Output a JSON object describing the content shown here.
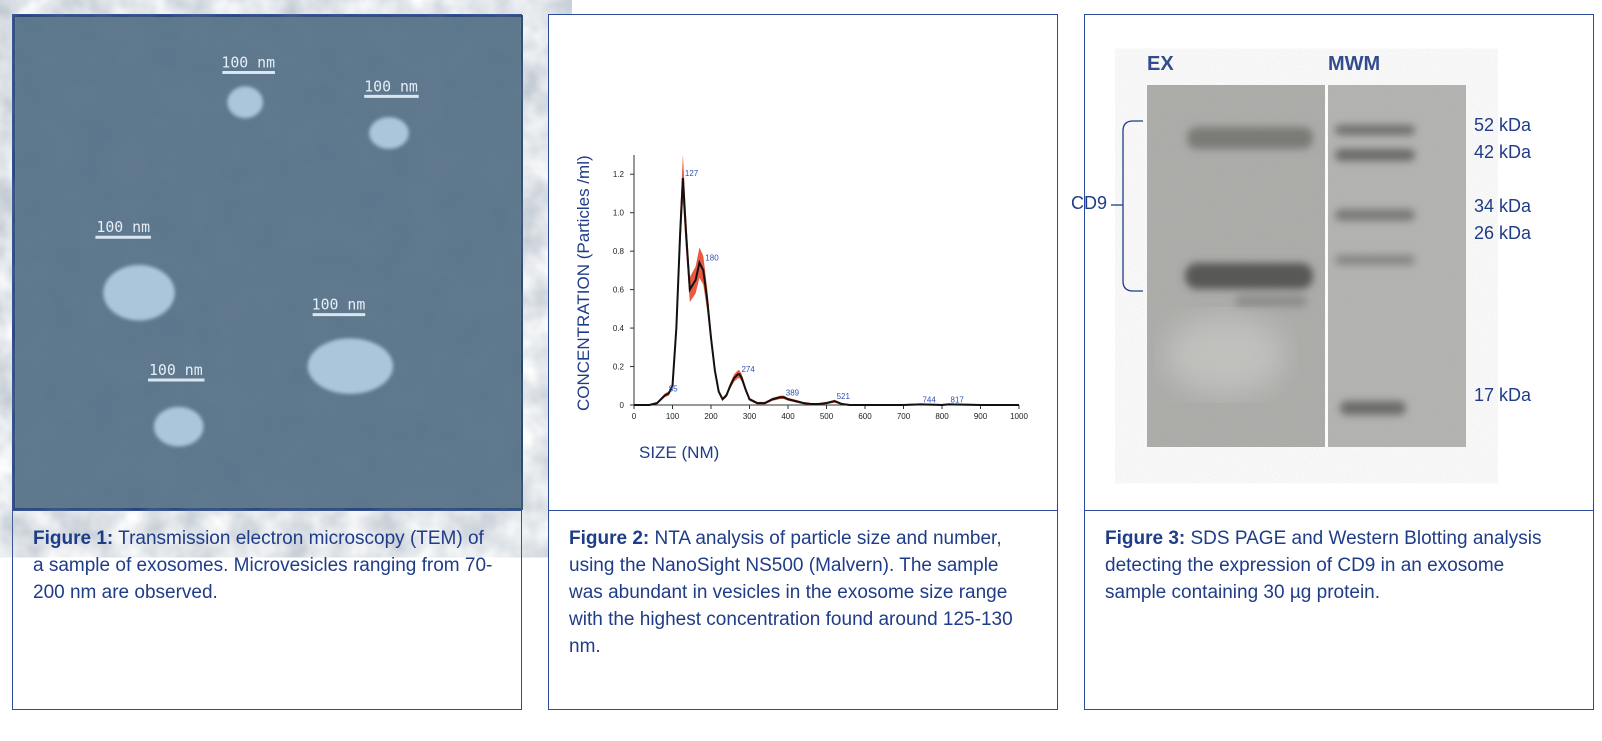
{
  "figure1": {
    "scale_bars": [
      "100 nm",
      "100 nm",
      "100 nm",
      "100 nm",
      "100 nm"
    ],
    "caption_label": "Figure 1:",
    "caption_text": " Transmission electron microscopy (TEM) of a sample of exosomes. Microvesicles ranging from 70-200 nm are observed."
  },
  "figure2": {
    "caption_label": "Figure 2:",
    "caption_text": " NTA analysis of particle size and number, using the NanoSight NS500 (Malvern). The sample was abundant in vesicles in the exosome size range with the highest concentration found around 125-130 nm.",
    "chart_data": {
      "type": "line",
      "xlabel": "SIZE (NM)",
      "ylabel": "CONCENTRATION (Particles /ml)",
      "xlim": [
        0,
        1000
      ],
      "ylim": [
        0,
        1.3
      ],
      "x_ticks": [
        0,
        100,
        200,
        300,
        400,
        500,
        600,
        700,
        800,
        900,
        1000
      ],
      "y_ticks": [
        0,
        0.2,
        0.4,
        0.6,
        0.8,
        1.0,
        1.2
      ],
      "x_tick_labels": [
        "0",
        "100",
        "200",
        "300",
        "400",
        "500",
        "600",
        "700",
        "800",
        "900",
        "1000"
      ],
      "y_tick_labels": [
        "0",
        "0.2",
        "0.4",
        "0.6",
        "0.8",
        "1.0",
        "1.2"
      ],
      "series": [
        {
          "x": [
            0,
            40,
            60,
            80,
            90,
            100,
            110,
            120,
            127,
            135,
            145,
            160,
            170,
            180,
            190,
            200,
            210,
            220,
            230,
            240,
            250,
            260,
            270,
            274,
            280,
            290,
            300,
            320,
            340,
            360,
            380,
            389,
            400,
            420,
            440,
            460,
            480,
            500,
            521,
            540,
            560,
            600,
            700,
            744,
            800,
            817,
            900,
            1000
          ],
          "y": [
            0,
            0,
            0.01,
            0.05,
            0.06,
            0.1,
            0.4,
            0.9,
            1.18,
            0.9,
            0.6,
            0.65,
            0.74,
            0.7,
            0.55,
            0.35,
            0.18,
            0.07,
            0.03,
            0.05,
            0.1,
            0.14,
            0.16,
            0.16,
            0.14,
            0.08,
            0.03,
            0.01,
            0.01,
            0.03,
            0.04,
            0.04,
            0.03,
            0.02,
            0.01,
            0.005,
            0.005,
            0.01,
            0.02,
            0.005,
            0,
            0,
            0,
            0.003,
            0,
            0.003,
            0,
            0
          ]
        }
      ],
      "peak_labels": [
        {
          "x": 85,
          "y": 0.06,
          "label": "85"
        },
        {
          "x": 127,
          "y": 1.18,
          "label": "127"
        },
        {
          "x": 180,
          "y": 0.74,
          "label": "180"
        },
        {
          "x": 274,
          "y": 0.16,
          "label": "274"
        },
        {
          "x": 389,
          "y": 0.04,
          "label": "389"
        },
        {
          "x": 521,
          "y": 0.02,
          "label": "521"
        },
        {
          "x": 744,
          "y": 0.003,
          "label": "744"
        },
        {
          "x": 817,
          "y": 0.003,
          "label": "817"
        }
      ],
      "colors": {
        "mean": "#111111",
        "error": "#e8482f",
        "axis": "#333333",
        "peak_label": "#2e4fb5"
      }
    }
  },
  "figure3": {
    "lane_labels": [
      "EX",
      "MWM"
    ],
    "bracket_label": "CD9",
    "marker_labels": [
      "52 kDa",
      "42 kDa",
      "34 kDa",
      "26 kDa",
      "17 kDa"
    ],
    "caption_label": "Figure 3:",
    "caption_text": " SDS PAGE and Western Blotting analysis detecting the expression of CD9 in an exosome sample containing 30 µg protein."
  }
}
